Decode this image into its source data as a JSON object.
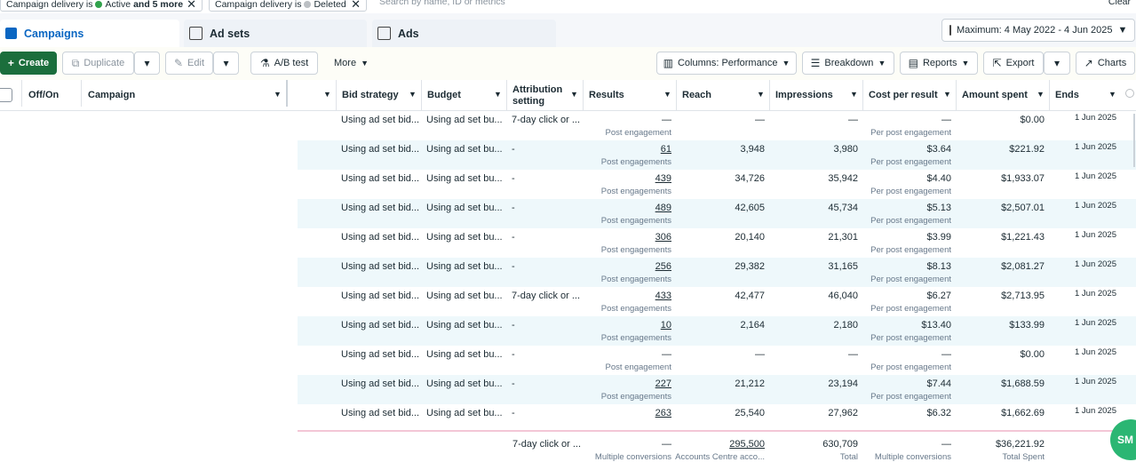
{
  "filters": [
    {
      "label": "Campaign delivery is",
      "value": "Active",
      "more": "and 5 more"
    },
    {
      "label": "Campaign delivery is",
      "value": "Deleted"
    }
  ],
  "search": "Search by name, ID or metrics",
  "clear": "Clear",
  "tabs": [
    "Campaigns",
    "Ad sets",
    "Ads"
  ],
  "date_range": "Maximum: 4 May 2022 - 4 Jun 2025",
  "toolbar": {
    "create": "Create",
    "duplicate": "Duplicate",
    "edit": "Edit",
    "ab_test": "A/B test",
    "more": "More",
    "columns": "Columns: Performance",
    "breakdown": "Breakdown",
    "reports": "Reports",
    "export": "Export",
    "charts": "Charts"
  },
  "left_headers": [
    "Off/On",
    "Campaign"
  ],
  "columns": [
    "Bid strategy",
    "Budget",
    "Attribution setting",
    "Results",
    "Reach",
    "Impressions",
    "Cost per result",
    "Amount spent",
    "Ends"
  ],
  "rows": [
    [
      "Using ad set bid...",
      "Using ad set bu...",
      "7-day click or ...",
      "—",
      "Post engagement",
      "—",
      "—",
      "—",
      "Per post engagement",
      "$0.00",
      "1 Jun 2025"
    ],
    [
      "Using ad set bid...",
      "Using ad set bu...",
      "-",
      "61",
      "Post engagements",
      "3,948",
      "3,980",
      "$3.64",
      "Per post engagement",
      "$221.92",
      "1 Jun 2025"
    ],
    [
      "Using ad set bid...",
      "Using ad set bu...",
      "-",
      "439",
      "Post engagements",
      "34,726",
      "35,942",
      "$4.40",
      "Per post engagement",
      "$1,933.07",
      "1 Jun 2025"
    ],
    [
      "Using ad set bid...",
      "Using ad set bu...",
      "-",
      "489",
      "Post engagements",
      "42,605",
      "45,734",
      "$5.13",
      "Per post engagement",
      "$2,507.01",
      "1 Jun 2025"
    ],
    [
      "Using ad set bid...",
      "Using ad set bu...",
      "-",
      "306",
      "Post engagements",
      "20,140",
      "21,301",
      "$3.99",
      "Per post engagement",
      "$1,221.43",
      "1 Jun 2025"
    ],
    [
      "Using ad set bid...",
      "Using ad set bu...",
      "-",
      "256",
      "Post engagements",
      "29,382",
      "31,165",
      "$8.13",
      "Per post engagement",
      "$2,081.27",
      "1 Jun 2025"
    ],
    [
      "Using ad set bid...",
      "Using ad set bu...",
      "7-day click or ...",
      "433",
      "Post engagements",
      "42,477",
      "46,040",
      "$6.27",
      "Per post engagement",
      "$2,713.95",
      "1 Jun 2025"
    ],
    [
      "Using ad set bid...",
      "Using ad set bu...",
      "-",
      "10",
      "Post engagements",
      "2,164",
      "2,180",
      "$13.40",
      "Per post engagement",
      "$133.99",
      "1 Jun 2025"
    ],
    [
      "Using ad set bid...",
      "Using ad set bu...",
      "-",
      "—",
      "Post engagement",
      "—",
      "—",
      "—",
      "Per post engagement",
      "$0.00",
      "1 Jun 2025"
    ],
    [
      "Using ad set bid...",
      "Using ad set bu...",
      "-",
      "227",
      "Post engagements",
      "21,212",
      "23,194",
      "$7.44",
      "Per post engagement",
      "$1,688.59",
      "1 Jun 2025"
    ],
    [
      "Using ad set bid...",
      "Using ad set bu...",
      "-",
      "263",
      "",
      "25,540",
      "27,962",
      "$6.32",
      "",
      "$1,662.69",
      "1 Jun 2025"
    ]
  ],
  "totals": {
    "attribution": "7-day click or ...",
    "results": "—",
    "results_sub": "Multiple conversions",
    "reach": "295,500",
    "reach_sub": "Accounts Centre acco...",
    "impressions": "630,709",
    "impressions_sub": "Total",
    "cost": "—",
    "cost_sub": "Multiple conversions",
    "spent": "$36,221.92",
    "spent_sub": "Total Spent"
  }
}
